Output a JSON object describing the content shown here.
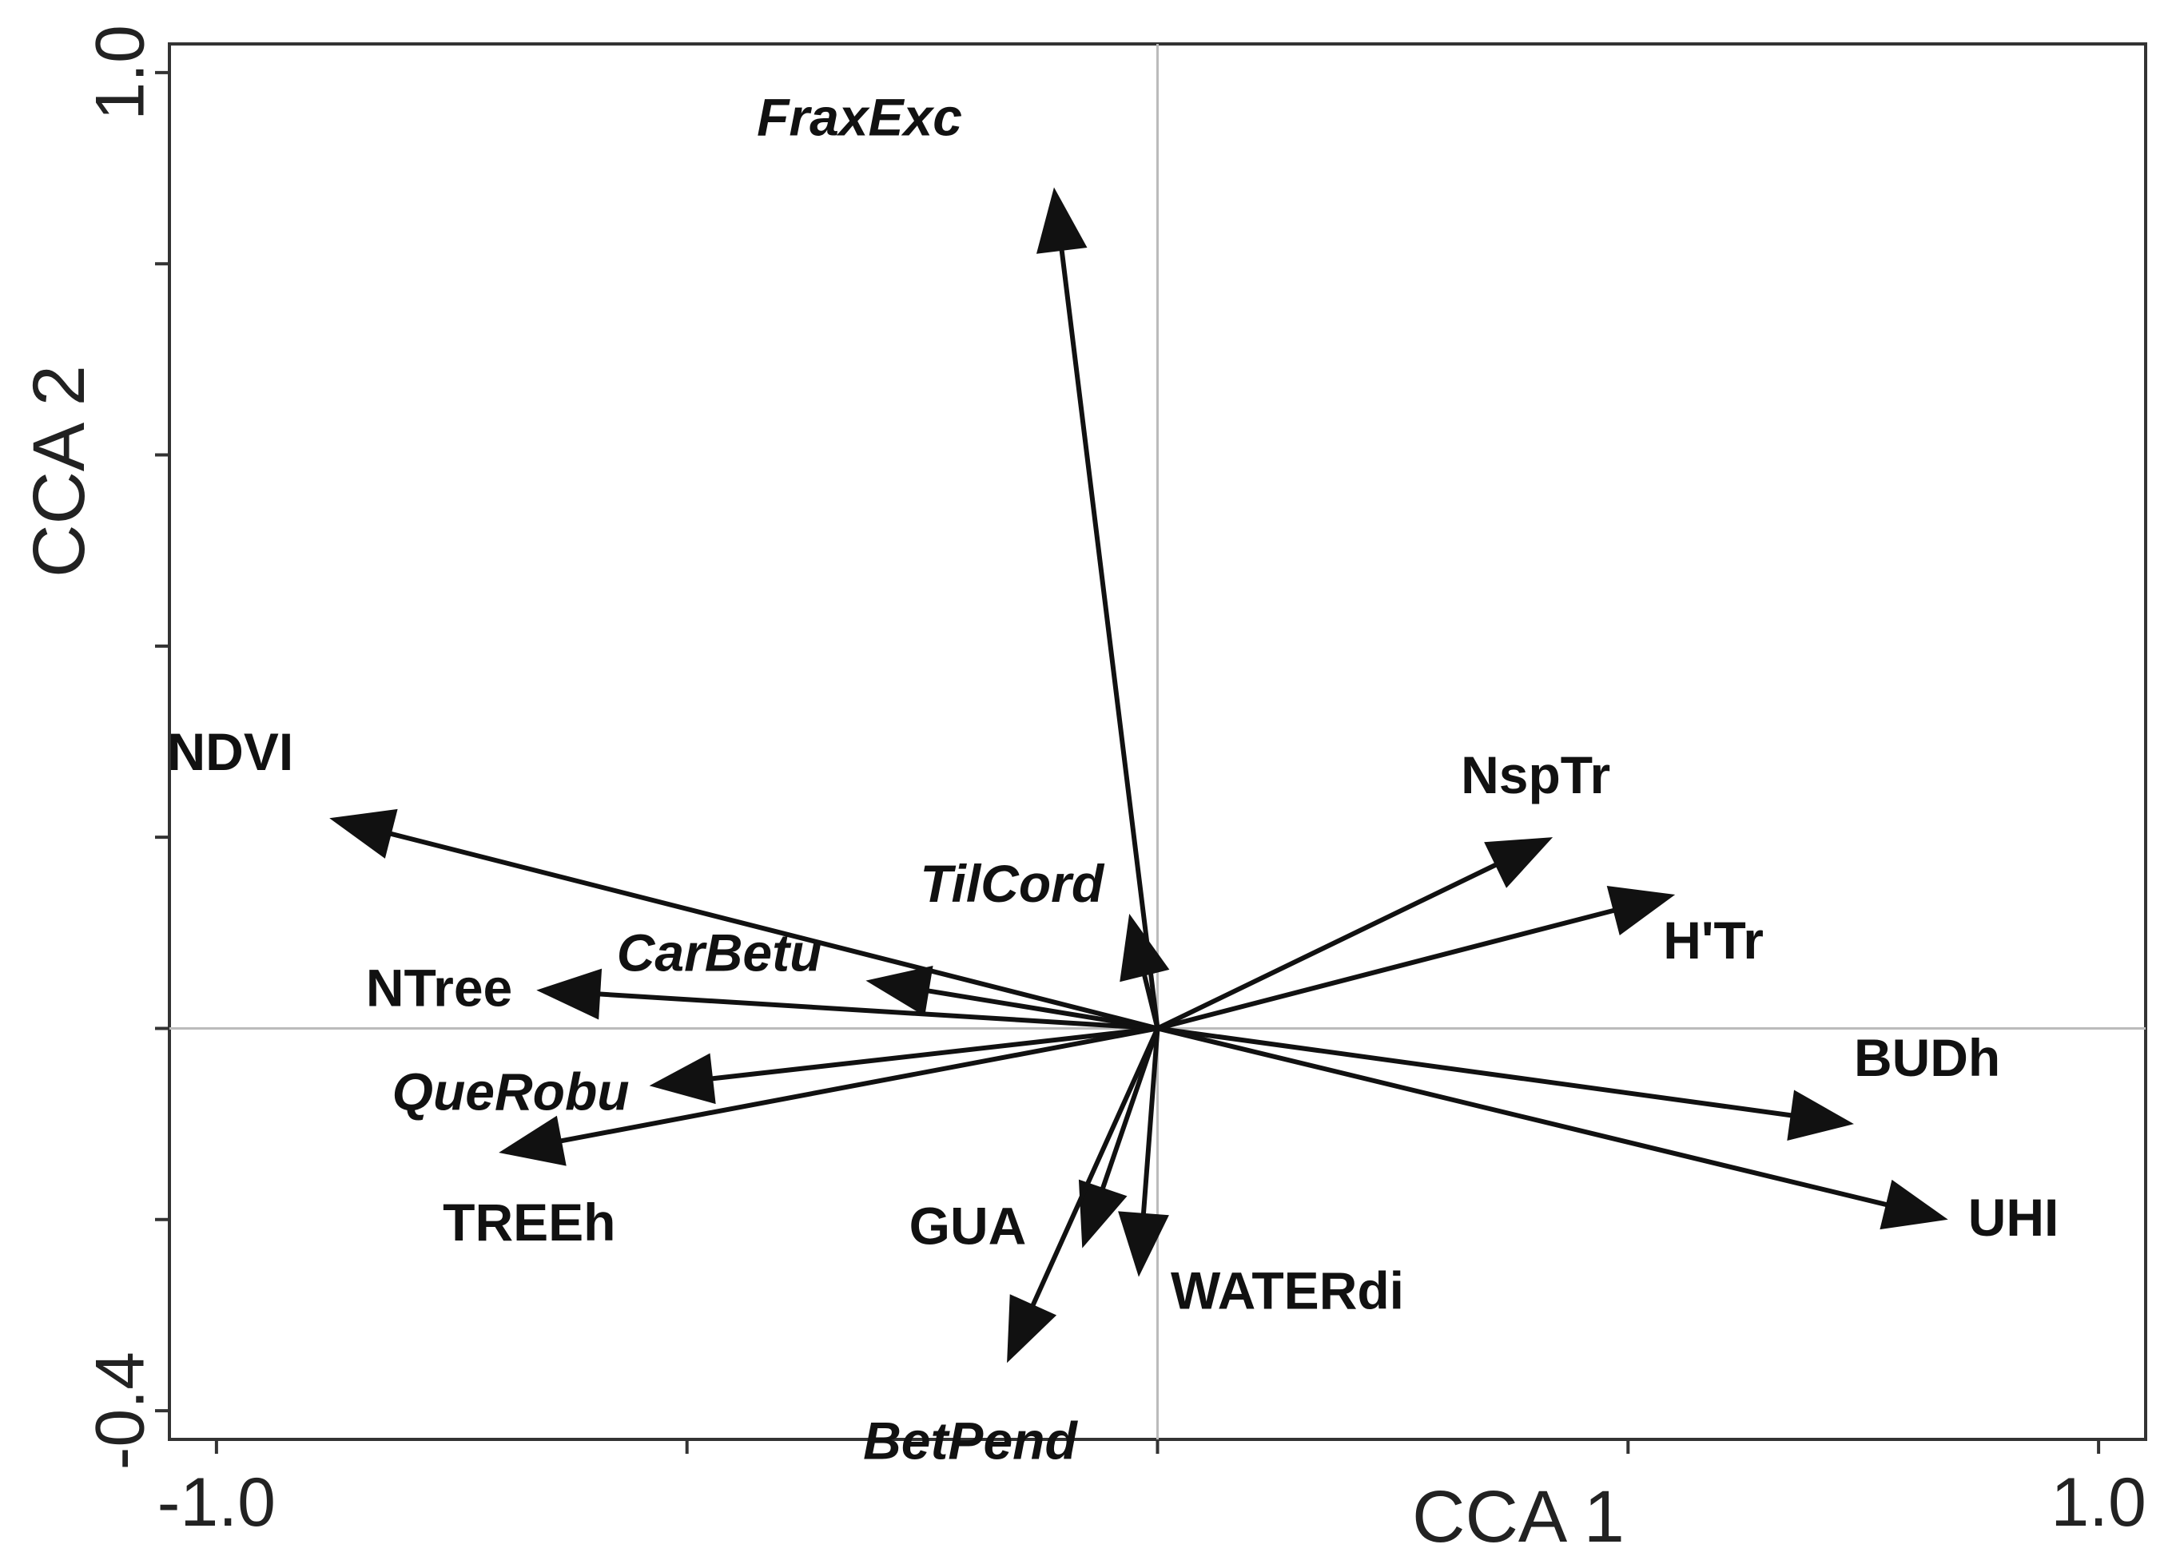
{
  "chart_data": {
    "type": "scatter",
    "subtype": "biplot-vectors",
    "xlabel": "CCA 1",
    "ylabel": "CCA 2",
    "xlim": [
      -1.05,
      1.05
    ],
    "ylim": [
      -0.43,
      1.03
    ],
    "x_tick_values": [
      -1.0,
      -0.5,
      0.0,
      0.5,
      1.0
    ],
    "y_tick_values": [
      -0.4,
      -0.2,
      0.0,
      0.2,
      0.4,
      0.6,
      0.8,
      1.0
    ],
    "x_tick_labels": [
      {
        "value": -1.0,
        "text": "-1.0"
      },
      {
        "value": 1.0,
        "text": "1.0"
      }
    ],
    "y_tick_labels": [
      {
        "value": 1.0,
        "text": "1.0"
      },
      {
        "value": -0.4,
        "text": "-0.4"
      }
    ],
    "zero_lines": true,
    "vectors": [
      {
        "label": "FraxExc",
        "style": "species",
        "x": -0.11,
        "y": 0.88
      },
      {
        "label": "TilCord",
        "style": "species",
        "x": -0.03,
        "y": 0.12
      },
      {
        "label": "NDVI",
        "style": "variable",
        "x": -0.88,
        "y": 0.22
      },
      {
        "label": "CarBetu",
        "style": "species",
        "x": -0.31,
        "y": 0.05
      },
      {
        "label": "NTree",
        "style": "variable",
        "x": -0.66,
        "y": 0.04
      },
      {
        "label": "QueRobu",
        "style": "species",
        "x": -0.54,
        "y": -0.06
      },
      {
        "label": "TREEh",
        "style": "variable",
        "x": -0.7,
        "y": -0.13
      },
      {
        "label": "GUA",
        "style": "variable",
        "x": -0.08,
        "y": -0.23
      },
      {
        "label": "BetPend",
        "style": "species",
        "x": -0.16,
        "y": -0.35
      },
      {
        "label": "WATERdi",
        "style": "variable",
        "x": -0.02,
        "y": -0.26
      },
      {
        "label": "NspTr",
        "style": "variable",
        "x": 0.42,
        "y": 0.2
      },
      {
        "label": "H'Tr",
        "style": "variable",
        "x": 0.55,
        "y": 0.14
      },
      {
        "label": "BUDh",
        "style": "variable",
        "x": 0.74,
        "y": -0.1
      },
      {
        "label": "UHI",
        "style": "variable",
        "x": 0.84,
        "y": -0.2
      }
    ]
  }
}
